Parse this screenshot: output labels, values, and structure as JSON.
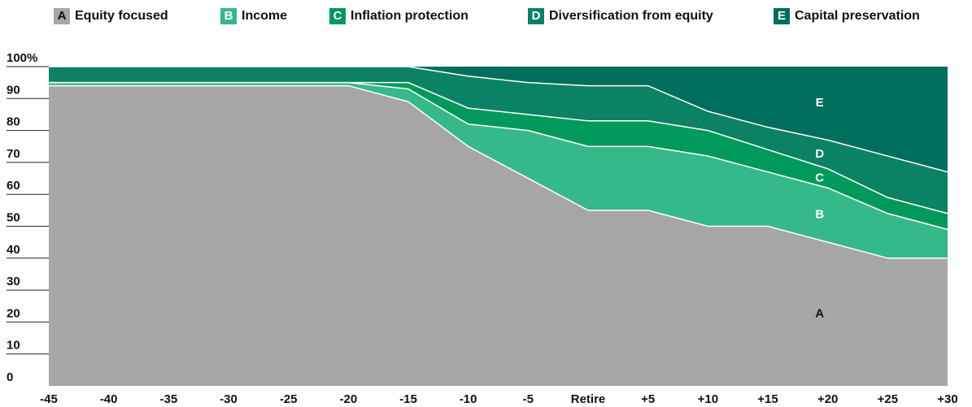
{
  "chart_data": {
    "type": "stacked-area",
    "categories": [
      "-45",
      "-40",
      "-35",
      "-30",
      "-25",
      "-20",
      "-15",
      "-10",
      "-5",
      "Retire",
      "+5",
      "+10",
      "+15",
      "+20",
      "+25",
      "+30"
    ],
    "series": [
      {
        "key": "A",
        "name": "Equity focused",
        "color": "#a6a6a6",
        "values": [
          94,
          94,
          94,
          94,
          94,
          94,
          89,
          75,
          65,
          55,
          55,
          50,
          50,
          45,
          40,
          40
        ]
      },
      {
        "key": "B",
        "name": "Income",
        "color": "#36b98a",
        "values": [
          1,
          1,
          1,
          1,
          1,
          1,
          4,
          7,
          15,
          20,
          20,
          22,
          17,
          17,
          14,
          9
        ]
      },
      {
        "key": "C",
        "name": "Inflation protection",
        "color": "#00995c",
        "values": [
          0,
          0,
          0,
          0,
          0,
          0,
          2,
          5,
          5,
          8,
          8,
          8,
          7,
          6,
          5,
          5
        ]
      },
      {
        "key": "D",
        "name": "Diversification from equity",
        "color": "#0b8263",
        "values": [
          5,
          5,
          5,
          5,
          5,
          5,
          5,
          10,
          10,
          11,
          11,
          6,
          7,
          9,
          13,
          13
        ]
      },
      {
        "key": "E",
        "name": "Capital preservation",
        "color": "#006e5c",
        "values": [
          0,
          0,
          0,
          0,
          0,
          0,
          0,
          3,
          5,
          6,
          6,
          14,
          19,
          23,
          28,
          33
        ]
      }
    ],
    "ylim": [
      0,
      100
    ],
    "yticks": [
      0,
      10,
      20,
      30,
      40,
      50,
      60,
      70,
      80,
      90,
      {
        "value": 100,
        "label": "100%"
      }
    ]
  }
}
